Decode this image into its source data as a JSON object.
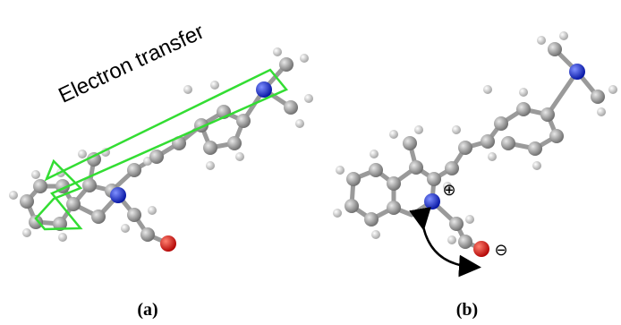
{
  "annotation": "Electron transfer",
  "panels": [
    {
      "label": "(a)"
    },
    {
      "label": "(b)",
      "charges": [
        "⊕",
        "⊖"
      ]
    }
  ]
}
